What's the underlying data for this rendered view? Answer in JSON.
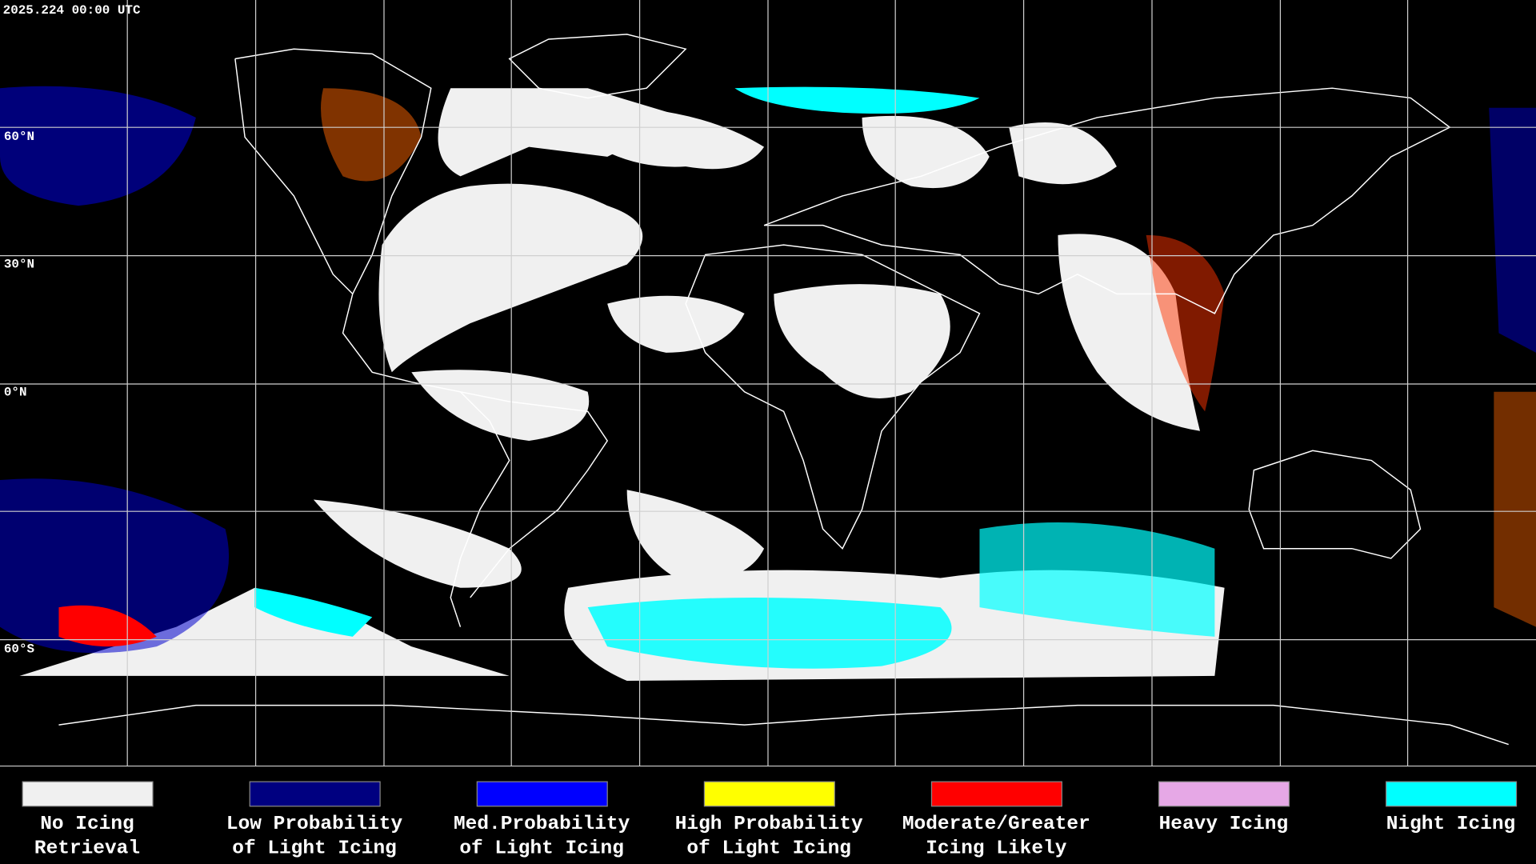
{
  "header": {
    "timestamp": "2025.224 00:00 UTC"
  },
  "grid": {
    "lat_labels": [
      "60°N",
      "30°N",
      "0°N",
      "60°S"
    ]
  },
  "legend": [
    {
      "color": "#f0f0f0",
      "label": [
        "No Icing",
        "Retrieval"
      ]
    },
    {
      "color": "#000080",
      "label": [
        "Low Probability",
        "of Light Icing"
      ]
    },
    {
      "color": "#0000ff",
      "label": [
        "Med.Probability",
        "of Light Icing"
      ]
    },
    {
      "color": "#ffff00",
      "label": [
        "High Probability",
        "of Light Icing"
      ]
    },
    {
      "color": "#ff0000",
      "label": [
        "Moderate/Greater",
        "Icing Likely"
      ]
    },
    {
      "color": "#e6a8e6",
      "label": [
        "Heavy Icing"
      ]
    },
    {
      "color": "#00ffff",
      "label": [
        "Night Icing"
      ]
    }
  ]
}
